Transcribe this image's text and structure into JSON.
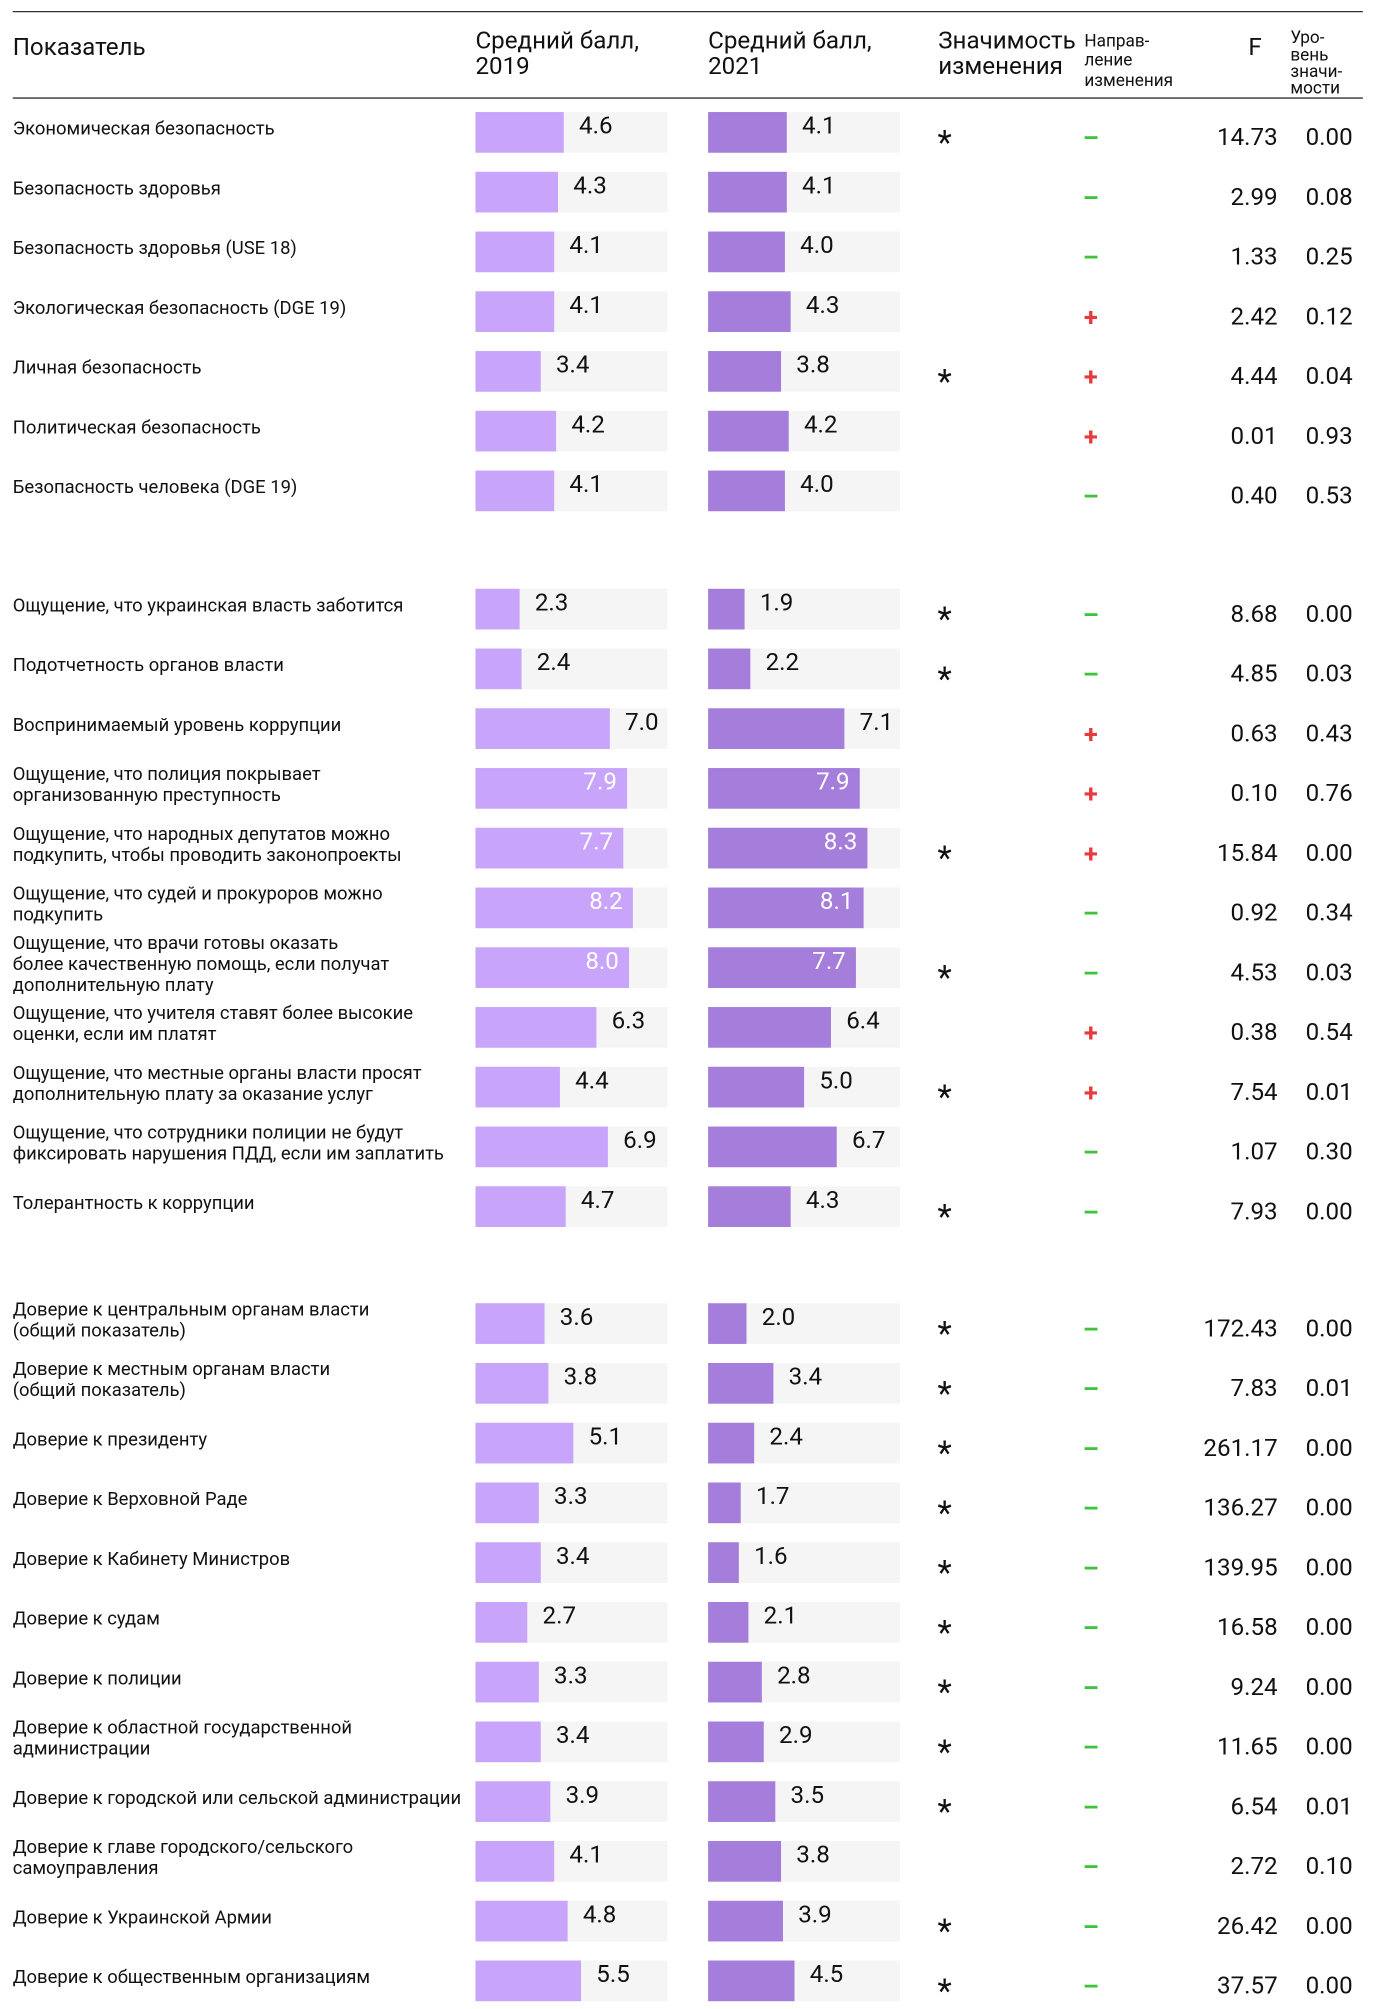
{
  "header": {
    "indicator": "Показатель",
    "score_2019": [
      "Средний балл,",
      "2019"
    ],
    "score_2021": [
      "Средний балл,",
      "2021"
    ],
    "significance": [
      "Значимость",
      "изменения"
    ],
    "direction": [
      "Направ-",
      "ление",
      "изменения"
    ],
    "f": "F",
    "level": [
      "Уро-",
      "вень",
      "значи-",
      "мости"
    ]
  },
  "groups": [
    {
      "rows": [
        {
          "label": [
            "Экономическая безопасность"
          ],
          "score_2019": {
            "value": 4.6,
            "label": "4.6"
          },
          "score_2021": {
            "value": 4.1,
            "label": "4.1"
          },
          "sig": "*",
          "dir": "–",
          "F": "14.73",
          "p": "0.00"
        },
        {
          "label": [
            "Безопасность здоровья"
          ],
          "score_2019": {
            "value": 4.3,
            "label": "4.3"
          },
          "score_2021": {
            "value": 4.1,
            "label": "4.1"
          },
          "dir": "–",
          "F": "2.99",
          "p": "0.08"
        },
        {
          "label": [
            "Безопасность здоровья (USE 18)"
          ],
          "score_2019": {
            "value": 4.1,
            "label": "4.1"
          },
          "score_2021": {
            "value": 4.0,
            "label": "4.0"
          },
          "dir": "–",
          "F": "1.33",
          "p": "0.25"
        },
        {
          "label": [
            "Экологическая безопасность (DGE 19)"
          ],
          "score_2019": {
            "value": 4.1,
            "label": "4.1"
          },
          "score_2021": {
            "value": 4.3,
            "label": "4.3"
          },
          "dir": "+",
          "F": "2.42",
          "p": "0.12"
        },
        {
          "label": [
            "Личная безопасность"
          ],
          "score_2019": {
            "value": 3.4,
            "label": "3.4"
          },
          "score_2021": {
            "value": 3.8,
            "label": "3.8"
          },
          "sig": "*",
          "dir": "+",
          "F": "4.44",
          "p": "0.04"
        },
        {
          "label": [
            "Политическая безопасность"
          ],
          "score_2019": {
            "value": 4.2,
            "label": "4.2"
          },
          "score_2021": {
            "value": 4.2,
            "label": "4.2"
          },
          "dir": "+",
          "F": "0.01",
          "p": "0.93"
        },
        {
          "label": [
            "Безопасность человека (DGE 19)"
          ],
          "score_2019": {
            "value": 4.1,
            "label": "4.1"
          },
          "score_2021": {
            "value": 4.0,
            "label": "4.0"
          },
          "dir": "–",
          "F": "0.40",
          "p": "0.53"
        }
      ]
    },
    {
      "rows": [
        {
          "label": [
            "Ощущение, что украинская власть заботится"
          ],
          "score_2019": {
            "value": 2.3,
            "label": "2.3"
          },
          "score_2021": {
            "value": 1.9,
            "label": "1.9"
          },
          "sig": "*",
          "dir": "–",
          "F": "8.68",
          "p": "0.00"
        },
        {
          "label": [
            "Подотчетность органов власти"
          ],
          "score_2019": {
            "value": 2.4,
            "label": "2.4"
          },
          "score_2021": {
            "value": 2.2,
            "label": "2.2"
          },
          "sig": "*",
          "dir": "–",
          "F": "4.85",
          "p": "0.03"
        },
        {
          "label": [
            "Воспринимаемый уровень коррупции"
          ],
          "score_2019": {
            "value": 7.0,
            "label": "7.0"
          },
          "score_2021": {
            "value": 7.1,
            "label": "7.1"
          },
          "dir": "+",
          "F": "0.63",
          "p": "0.43"
        },
        {
          "label": [
            "Ощущение, что полиция покрывает",
            "организованную преступность"
          ],
          "score_2019": {
            "value": 7.9,
            "label": "7.9"
          },
          "score_2021": {
            "value": 7.9,
            "label": "7.9"
          },
          "dir": "+",
          "F": "0.10",
          "p": "0.76"
        },
        {
          "label": [
            "Ощущение, что народных депутатов можно",
            "подкупить, чтобы проводить законопроекты"
          ],
          "score_2019": {
            "value": 7.7,
            "label": "7.7"
          },
          "score_2021": {
            "value": 8.3,
            "label": "8.3"
          },
          "sig": "*",
          "dir": "+",
          "F": "15.84",
          "p": "0.00"
        },
        {
          "label": [
            "Ощущение, что судей и прокуроров можно",
            "подкупить"
          ],
          "score_2019": {
            "value": 8.2,
            "label": "8.2"
          },
          "score_2021": {
            "value": 8.1,
            "label": "8.1"
          },
          "dir": "–",
          "F": "0.92",
          "p": "0.34"
        },
        {
          "label": [
            "Ощущение, что врачи готовы оказать",
            "более качественную помощь, если получат",
            "дополнительную плату"
          ],
          "score_2019": {
            "value": 8.0,
            "label": "8.0"
          },
          "score_2021": {
            "value": 7.7,
            "label": "7.7"
          },
          "sig": "*",
          "dir": "–",
          "F": "4.53",
          "p": "0.03"
        },
        {
          "label": [
            "Ощущение, что учителя ставят более высокие",
            "оценки, если им платят"
          ],
          "score_2019": {
            "value": 6.3,
            "label": "6.3"
          },
          "score_2021": {
            "value": 6.4,
            "label": "6.4"
          },
          "dir": "+",
          "F": "0.38",
          "p": "0.54"
        },
        {
          "label": [
            "Ощущение, что местные органы власти просят",
            "дополнительную плату за оказание услуг"
          ],
          "score_2019": {
            "value": 4.4,
            "label": "4.4"
          },
          "score_2021": {
            "value": 5.0,
            "label": "5.0"
          },
          "sig": "*",
          "dir": "+",
          "F": "7.54",
          "p": "0.01"
        },
        {
          "label": [
            "Ощущение, что сотрудники полиции не будут",
            "фиксировать нарушения ПДД, если им заплатить"
          ],
          "score_2019": {
            "value": 6.9,
            "label": "6.9"
          },
          "score_2021": {
            "value": 6.7,
            "label": "6.7"
          },
          "dir": "–",
          "F": "1.07",
          "p": "0.30"
        },
        {
          "label": [
            "Толерантность к коррупции"
          ],
          "score_2019": {
            "value": 4.7,
            "label": "4.7"
          },
          "score_2021": {
            "value": 4.3,
            "label": "4.3"
          },
          "sig": "*",
          "dir": "–",
          "F": "7.93",
          "p": "0.00"
        }
      ]
    },
    {
      "rows": [
        {
          "label": [
            "Доверие к центральным органам власти",
            "(общий показатель)"
          ],
          "score_2019": {
            "value": 3.6,
            "label": "3.6"
          },
          "score_2021": {
            "value": 2.0,
            "label": "2.0"
          },
          "sig": "*",
          "dir": "–",
          "F": "172.43",
          "p": "0.00"
        },
        {
          "label": [
            "Доверие к местным органам власти",
            "(общий показатель)"
          ],
          "score_2019": {
            "value": 3.8,
            "label": "3.8"
          },
          "score_2021": {
            "value": 3.4,
            "label": "3.4"
          },
          "sig": "*",
          "dir": "–",
          "F": "7.83",
          "p": "0.01"
        },
        {
          "label": [
            "Доверие к президенту"
          ],
          "score_2019": {
            "value": 5.1,
            "label": "5.1"
          },
          "score_2021": {
            "value": 2.4,
            "label": "2.4"
          },
          "sig": "*",
          "dir": "–",
          "F": "261.17",
          "p": "0.00"
        },
        {
          "label": [
            "Доверие к Верховной Раде"
          ],
          "score_2019": {
            "value": 3.3,
            "label": "3.3"
          },
          "score_2021": {
            "value": 1.7,
            "label": "1.7"
          },
          "sig": "*",
          "dir": "–",
          "F": "136.27",
          "p": "0.00"
        },
        {
          "label": [
            "Доверие к Кабинету Министров"
          ],
          "score_2019": {
            "value": 3.4,
            "label": "3.4"
          },
          "score_2021": {
            "value": 1.6,
            "label": "1.6"
          },
          "sig": "*",
          "dir": "–",
          "F": "139.95",
          "p": "0.00"
        },
        {
          "label": [
            "Доверие к судам"
          ],
          "score_2019": {
            "value": 2.7,
            "label": "2.7"
          },
          "score_2021": {
            "value": 2.1,
            "label": "2.1"
          },
          "sig": "*",
          "dir": "–",
          "F": "16.58",
          "p": "0.00"
        },
        {
          "label": [
            "Доверие к полиции"
          ],
          "score_2019": {
            "value": 3.3,
            "label": "3.3"
          },
          "score_2021": {
            "value": 2.8,
            "label": "2.8"
          },
          "sig": "*",
          "dir": "–",
          "F": "9.24",
          "p": "0.00"
        },
        {
          "label": [
            "Доверие к областной государственной",
            "администрации"
          ],
          "score_2019": {
            "value": 3.4,
            "label": "3.4"
          },
          "score_2021": {
            "value": 2.9,
            "label": "2.9"
          },
          "sig": "*",
          "dir": "–",
          "F": "11.65",
          "p": "0.00"
        },
        {
          "label": [
            "Доверие к городской или сельской администрации"
          ],
          "score_2019": {
            "value": 3.9,
            "label": "3.9"
          },
          "score_2021": {
            "value": 3.5,
            "label": "3.5"
          },
          "sig": "*",
          "dir": "–",
          "F": "6.54",
          "p": "0.01"
        },
        {
          "label": [
            "Доверие к главе городского/сельского",
            "самоуправления"
          ],
          "score_2019": {
            "value": 4.1,
            "label": "4.1"
          },
          "score_2021": {
            "value": 3.8,
            "label": "3.8"
          },
          "dir": "–",
          "F": "2.72",
          "p": "0.10"
        },
        {
          "label": [
            "Доверие к Украинской Армии"
          ],
          "score_2019": {
            "value": 4.8,
            "label": "4.8"
          },
          "score_2021": {
            "value": 3.9,
            "label": "3.9"
          },
          "sig": "*",
          "dir": "–",
          "F": "26.42",
          "p": "0.00"
        },
        {
          "label": [
            "Доверие к общественным организациям"
          ],
          "score_2019": {
            "value": 5.5,
            "label": "5.5"
          },
          "score_2021": {
            "value": 4.5,
            "label": "4.5"
          },
          "sig": "*",
          "dir": "–",
          "F": "37.57",
          "p": "0.00"
        }
      ]
    }
  ]
}
